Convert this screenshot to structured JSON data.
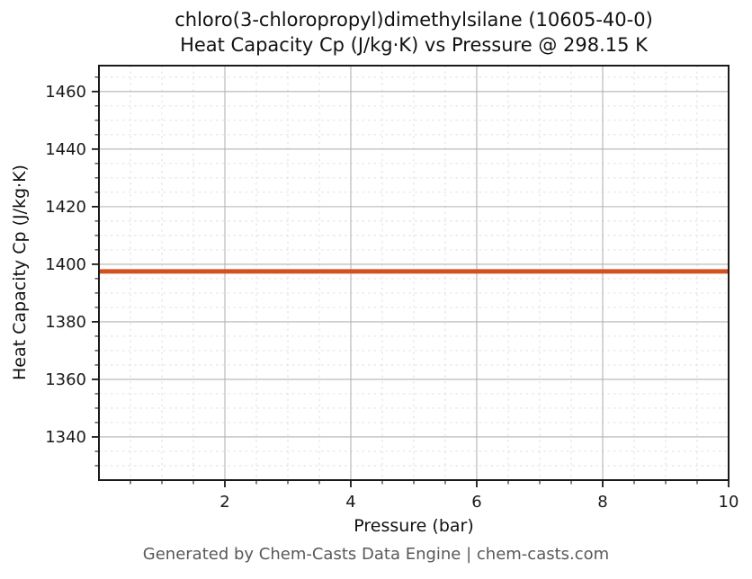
{
  "chart_data": {
    "type": "line",
    "title_line1": "chloro(3-chloropropyl)dimethylsilane (10605-40-0)",
    "title_line2": "Heat Capacity Cp (J/kg·K) vs Pressure @ 298.15 K",
    "xlabel": "Pressure (bar)",
    "ylabel": "Heat Capacity Cp (J/kg·K)",
    "xlim": [
      0,
      10
    ],
    "ylim": [
      1325,
      1469
    ],
    "x_ticks": [
      2,
      4,
      6,
      8,
      10
    ],
    "y_ticks": [
      1340,
      1360,
      1380,
      1400,
      1420,
      1440,
      1460
    ],
    "x_minor_step": 0.5,
    "y_minor_step": 5,
    "grid": true,
    "legend": "none",
    "series": [
      {
        "name": "Heat Capacity Cp",
        "x": [
          0,
          10
        ],
        "y": [
          1397.5,
          1397.5
        ],
        "color": "#d4511f",
        "linewidth": 5
      }
    ],
    "colors": {
      "major_grid": "#b3b3b3",
      "minor_grid": "#dcdcdc",
      "spine": "#1a1a1a",
      "tick_label": "#1a1a1a"
    }
  },
  "footer": {
    "text": "Generated by Chem-Casts Data Engine | chem-casts.com"
  }
}
